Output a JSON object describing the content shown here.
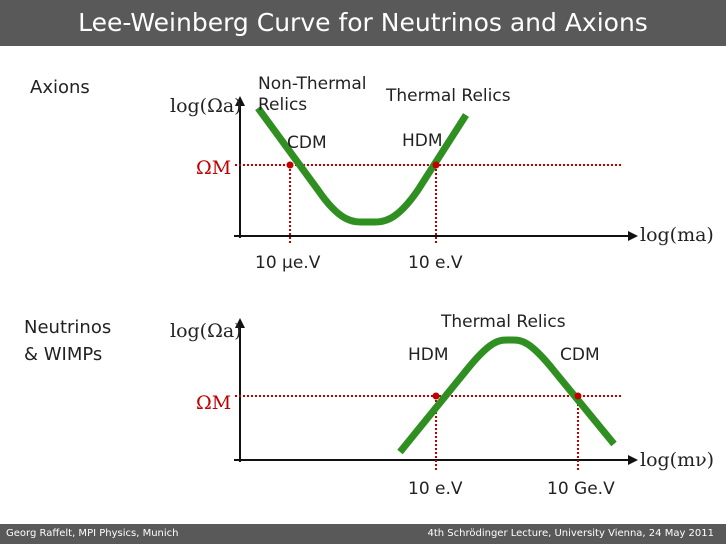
{
  "title": "Lee-Weinberg Curve for Neutrinos and Axions",
  "footer": {
    "left": "Georg Raffelt, MPI Physics, Munich",
    "right": "4th Schrödinger Lecture, University Vienna, 24 May 2011"
  },
  "colors": {
    "curve": "#2f8f20",
    "omega_line": "#c00000",
    "header_bar": "#595959"
  },
  "panels": [
    {
      "side_label": "Axions",
      "y_axis": "log(Ωa)",
      "x_axis": "log(ma)",
      "omega_m": "ΩM",
      "regions": [
        "Non-Thermal\nRelics",
        "Thermal Relics"
      ],
      "curve_labels": [
        "CDM",
        "HDM"
      ],
      "mass_ticks": [
        "10 μe.V",
        "10 e.V"
      ]
    },
    {
      "side_label": "Neutrinos\n& WIMPs",
      "y_axis": "log(Ωa)",
      "x_axis": "log(mν)",
      "omega_m": "ΩM",
      "regions": [
        "Thermal Relics"
      ],
      "curve_labels": [
        "HDM",
        "CDM"
      ],
      "mass_ticks": [
        "10 e.V",
        "10 Ge.V"
      ]
    }
  ]
}
